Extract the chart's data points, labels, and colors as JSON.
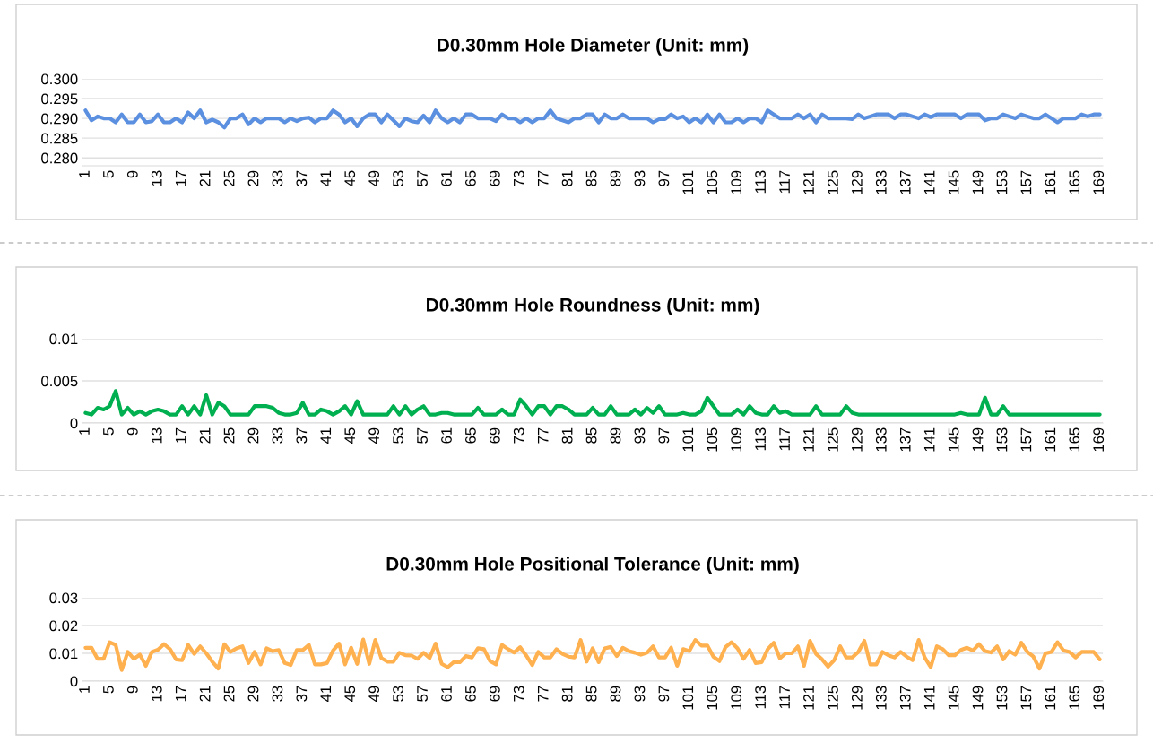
{
  "chart_data": [
    {
      "type": "line",
      "title": "D0.30mm Hole Diameter (Unit: mm)",
      "categories": [
        "1",
        null,
        null,
        null,
        "5",
        null,
        null,
        null,
        "9",
        null,
        null,
        null,
        "13",
        null,
        null,
        null,
        "17",
        null,
        null,
        null,
        "21",
        null,
        null,
        null,
        "25",
        null,
        null,
        null,
        "29",
        null,
        null,
        null,
        "33",
        null,
        null,
        null,
        "37",
        null,
        null,
        null,
        "41",
        null,
        null,
        null,
        "45",
        null,
        null,
        null,
        "49",
        null,
        null,
        null,
        "53",
        null,
        null,
        null,
        "57",
        null,
        null,
        null,
        "61",
        null,
        null,
        null,
        "65",
        null,
        null,
        null,
        "69",
        null,
        null,
        null,
        "73",
        null,
        null,
        null,
        "77",
        null,
        null,
        null,
        "81",
        null,
        null,
        null,
        "85",
        null,
        null,
        null,
        "89",
        null,
        null,
        null,
        "93",
        null,
        null,
        null,
        "97",
        null,
        null,
        null,
        "101",
        null,
        null,
        null,
        "105",
        null,
        null,
        null,
        "109",
        null,
        null,
        null,
        "113",
        null,
        null,
        null,
        "117",
        null,
        null,
        null,
        "121",
        null,
        null,
        null,
        "125",
        null,
        null,
        null,
        "129",
        null,
        null,
        null,
        "133",
        null,
        null,
        null,
        "137",
        null,
        null,
        null,
        "141",
        null,
        null,
        null,
        "145",
        null,
        null,
        null,
        "149",
        null,
        null,
        null,
        "153",
        null,
        null,
        null,
        "157",
        null,
        null,
        null,
        "161",
        null,
        null,
        null,
        "165",
        null,
        null,
        null,
        "169"
      ],
      "series": [
        {
          "color": "#5b8fe0",
          "values": [
            0.292,
            0.2895,
            0.2905,
            0.29,
            0.29,
            0.289,
            0.291,
            0.289,
            0.289,
            0.291,
            0.289,
            0.2893,
            0.291,
            0.289,
            0.289,
            0.29,
            0.289,
            0.2915,
            0.29,
            0.292,
            0.289,
            0.2897,
            0.289,
            0.2877,
            0.29,
            0.29,
            0.291,
            0.2885,
            0.29,
            0.289,
            0.29,
            0.29,
            0.29,
            0.289,
            0.29,
            0.2893,
            0.29,
            0.2902,
            0.289,
            0.29,
            0.29,
            0.292,
            0.291,
            0.289,
            0.29,
            0.288,
            0.29,
            0.291,
            0.291,
            0.289,
            0.291,
            0.2895,
            0.288,
            0.29,
            0.2893,
            0.289,
            0.2907,
            0.289,
            0.292,
            0.29,
            0.289,
            0.29,
            0.289,
            0.291,
            0.291,
            0.29,
            0.29,
            0.29,
            0.2893,
            0.291,
            0.29,
            0.29,
            0.289,
            0.29,
            0.289,
            0.29,
            0.29,
            0.292,
            0.29,
            0.2895,
            0.289,
            0.29,
            0.29,
            0.291,
            0.291,
            0.289,
            0.291,
            0.29,
            0.29,
            0.291,
            0.29,
            0.29,
            0.29,
            0.29,
            0.289,
            0.2898,
            0.2898,
            0.291,
            0.29,
            0.2905,
            0.289,
            0.29,
            0.289,
            0.291,
            0.289,
            0.291,
            0.289,
            0.289,
            0.29,
            0.289,
            0.29,
            0.29,
            0.289,
            0.292,
            0.291,
            0.29,
            0.29,
            0.29,
            0.291,
            0.29,
            0.291,
            0.289,
            0.291,
            0.29,
            0.29,
            0.29,
            0.29,
            0.2898,
            0.291,
            0.29,
            0.2905,
            0.291,
            0.291,
            0.291,
            0.29,
            0.291,
            0.291,
            0.2905,
            0.29,
            0.291,
            0.2903,
            0.291,
            0.291,
            0.291,
            0.291,
            0.29,
            0.291,
            0.291,
            0.291,
            0.2895,
            0.29,
            0.29,
            0.291,
            0.2905,
            0.29,
            0.291,
            0.2905,
            0.29,
            0.29,
            0.291,
            0.29,
            0.289,
            0.29,
            0.29,
            0.29,
            0.291,
            0.2905,
            0.291,
            0.291
          ]
        }
      ],
      "ylim": [
        0.278,
        0.3
      ],
      "yticks": [
        {
          "value": 0.28,
          "label": "0.280"
        },
        {
          "value": 0.285,
          "label": "0.285"
        },
        {
          "value": 0.29,
          "label": "0.290"
        },
        {
          "value": 0.295,
          "label": "0.295"
        },
        {
          "value": 0.3,
          "label": "0.300"
        }
      ],
      "grid": "y",
      "legend": false,
      "marker": "none",
      "line_style": "solid"
    },
    {
      "type": "line",
      "title": "D0.30mm Hole Roundness (Unit: mm)",
      "categories": [
        "1",
        null,
        null,
        null,
        "5",
        null,
        null,
        null,
        "9",
        null,
        null,
        null,
        "13",
        null,
        null,
        null,
        "17",
        null,
        null,
        null,
        "21",
        null,
        null,
        null,
        "25",
        null,
        null,
        null,
        "29",
        null,
        null,
        null,
        "33",
        null,
        null,
        null,
        "37",
        null,
        null,
        null,
        "41",
        null,
        null,
        null,
        "45",
        null,
        null,
        null,
        "49",
        null,
        null,
        null,
        "53",
        null,
        null,
        null,
        "57",
        null,
        null,
        null,
        "61",
        null,
        null,
        null,
        "65",
        null,
        null,
        null,
        "69",
        null,
        null,
        null,
        "73",
        null,
        null,
        null,
        "77",
        null,
        null,
        null,
        "81",
        null,
        null,
        null,
        "85",
        null,
        null,
        null,
        "89",
        null,
        null,
        null,
        "93",
        null,
        null,
        null,
        "97",
        null,
        null,
        null,
        "101",
        null,
        null,
        null,
        "105",
        null,
        null,
        null,
        "109",
        null,
        null,
        null,
        "113",
        null,
        null,
        null,
        "117",
        null,
        null,
        null,
        "121",
        null,
        null,
        null,
        "125",
        null,
        null,
        null,
        "129",
        null,
        null,
        null,
        "133",
        null,
        null,
        null,
        "137",
        null,
        null,
        null,
        "141",
        null,
        null,
        null,
        "145",
        null,
        null,
        null,
        "149",
        null,
        null,
        null,
        "153",
        null,
        null,
        null,
        "157",
        null,
        null,
        null,
        "161",
        null,
        null,
        null,
        "165",
        null,
        null,
        null,
        "169"
      ],
      "series": [
        {
          "color": "#00b050",
          "values": [
            0.0012,
            0.001,
            0.0018,
            0.0016,
            0.002,
            0.0038,
            0.001,
            0.0018,
            0.001,
            0.0014,
            0.001,
            0.0014,
            0.0016,
            0.0014,
            0.001,
            0.001,
            0.002,
            0.001,
            0.002,
            0.001,
            0.0033,
            0.001,
            0.0024,
            0.002,
            0.001,
            0.001,
            0.001,
            0.001,
            0.002,
            0.002,
            0.002,
            0.0018,
            0.0012,
            0.001,
            0.001,
            0.0012,
            0.0024,
            0.001,
            0.001,
            0.0016,
            0.0014,
            0.001,
            0.0014,
            0.002,
            0.001,
            0.0026,
            0.001,
            0.001,
            0.001,
            0.001,
            0.001,
            0.002,
            0.001,
            0.002,
            0.001,
            0.0016,
            0.002,
            0.001,
            0.001,
            0.0012,
            0.0012,
            0.001,
            0.001,
            0.001,
            0.001,
            0.0018,
            0.001,
            0.001,
            0.001,
            0.0016,
            0.001,
            0.001,
            0.0028,
            0.002,
            0.001,
            0.002,
            0.002,
            0.001,
            0.002,
            0.002,
            0.0016,
            0.001,
            0.001,
            0.001,
            0.0018,
            0.001,
            0.001,
            0.002,
            0.001,
            0.001,
            0.001,
            0.0016,
            0.001,
            0.0018,
            0.0012,
            0.002,
            0.001,
            0.001,
            0.001,
            0.0012,
            0.001,
            0.001,
            0.0014,
            0.003,
            0.002,
            0.001,
            0.001,
            0.001,
            0.0016,
            0.001,
            0.002,
            0.0012,
            0.001,
            0.001,
            0.002,
            0.0012,
            0.0014,
            0.001,
            0.001,
            0.001,
            0.001,
            0.002,
            0.001,
            0.001,
            0.001,
            0.001,
            0.002,
            0.0012,
            0.001,
            0.001,
            0.001,
            0.001,
            0.001,
            0.001,
            0.001,
            0.001,
            0.001,
            0.001,
            0.001,
            0.001,
            0.001,
            0.001,
            0.001,
            0.001,
            0.001,
            0.0012,
            0.001,
            0.001,
            0.001,
            0.003,
            0.001,
            0.001,
            0.002,
            0.001,
            0.001,
            0.001,
            0.001,
            0.001,
            0.001,
            0.001,
            0.001,
            0.001,
            0.001,
            0.001,
            0.001,
            0.001,
            0.001,
            0.001,
            0.001
          ]
        }
      ],
      "ylim": [
        0,
        0.01
      ],
      "yticks": [
        0,
        0.005,
        0.01
      ],
      "grid": "y",
      "legend": false,
      "marker": "none",
      "line_style": "solid"
    },
    {
      "type": "line",
      "title": "D0.30mm Hole Positional Tolerance (Unit: mm)",
      "categories": [
        "1",
        null,
        null,
        null,
        "5",
        null,
        null,
        null,
        "9",
        null,
        null,
        null,
        "13",
        null,
        null,
        null,
        "17",
        null,
        null,
        null,
        "21",
        null,
        null,
        null,
        "25",
        null,
        null,
        null,
        "29",
        null,
        null,
        null,
        "33",
        null,
        null,
        null,
        "37",
        null,
        null,
        null,
        "41",
        null,
        null,
        null,
        "45",
        null,
        null,
        null,
        "49",
        null,
        null,
        null,
        "53",
        null,
        null,
        null,
        "57",
        null,
        null,
        null,
        "61",
        null,
        null,
        null,
        "65",
        null,
        null,
        null,
        "69",
        null,
        null,
        null,
        "73",
        null,
        null,
        null,
        "77",
        null,
        null,
        null,
        "81",
        null,
        null,
        null,
        "85",
        null,
        null,
        null,
        "89",
        null,
        null,
        null,
        "93",
        null,
        null,
        null,
        "97",
        null,
        null,
        null,
        "101",
        null,
        null,
        null,
        "105",
        null,
        null,
        null,
        "109",
        null,
        null,
        null,
        "113",
        null,
        null,
        null,
        "117",
        null,
        null,
        null,
        "121",
        null,
        null,
        null,
        "125",
        null,
        null,
        null,
        "129",
        null,
        null,
        null,
        "133",
        null,
        null,
        null,
        "137",
        null,
        null,
        null,
        "141",
        null,
        null,
        null,
        "145",
        null,
        null,
        null,
        "149",
        null,
        null,
        null,
        "153",
        null,
        null,
        null,
        "157",
        null,
        null,
        null,
        "161",
        null,
        null,
        null,
        "165",
        null,
        null,
        null,
        "169"
      ],
      "series": [
        {
          "color": "#ffb04f",
          "values": [
            0.012,
            0.012,
            0.008,
            0.008,
            0.014,
            0.013,
            0.004,
            0.0105,
            0.008,
            0.0095,
            0.0055,
            0.0105,
            0.0113,
            0.0133,
            0.0115,
            0.0078,
            0.0075,
            0.013,
            0.0098,
            0.0125,
            0.01,
            0.007,
            0.0045,
            0.0133,
            0.0105,
            0.0118,
            0.0125,
            0.0065,
            0.0105,
            0.006,
            0.0118,
            0.0108,
            0.0112,
            0.0065,
            0.0058,
            0.0112,
            0.0112,
            0.013,
            0.006,
            0.006,
            0.0065,
            0.011,
            0.0135,
            0.006,
            0.012,
            0.0062,
            0.015,
            0.0062,
            0.0148,
            0.0083,
            0.007,
            0.007,
            0.0102,
            0.0093,
            0.0092,
            0.008,
            0.0102,
            0.0083,
            0.0135,
            0.0062,
            0.005,
            0.0068,
            0.0068,
            0.009,
            0.0085,
            0.0118,
            0.0115,
            0.0072,
            0.006,
            0.013,
            0.0115,
            0.0103,
            0.0122,
            0.0092,
            0.0058,
            0.0105,
            0.0085,
            0.0085,
            0.0115,
            0.0098,
            0.0088,
            0.0085,
            0.0148,
            0.007,
            0.0118,
            0.0068,
            0.0118,
            0.0123,
            0.009,
            0.012,
            0.0108,
            0.0102,
            0.0095,
            0.0102,
            0.0125,
            0.0085,
            0.0085,
            0.012,
            0.0055,
            0.0115,
            0.0108,
            0.0148,
            0.0128,
            0.0128,
            0.0088,
            0.0072,
            0.0122,
            0.014,
            0.0118,
            0.008,
            0.0112,
            0.0065,
            0.0068,
            0.0115,
            0.0138,
            0.0082,
            0.01,
            0.01,
            0.0125,
            0.0055,
            0.0145,
            0.0098,
            0.0078,
            0.0052,
            0.0075,
            0.0125,
            0.0085,
            0.0085,
            0.0105,
            0.0145,
            0.006,
            0.006,
            0.0105,
            0.0093,
            0.0085,
            0.0105,
            0.0088,
            0.0075,
            0.0148,
            0.0085,
            0.005,
            0.0125,
            0.0115,
            0.0093,
            0.0093,
            0.0112,
            0.012,
            0.011,
            0.0133,
            0.0108,
            0.0103,
            0.0125,
            0.0078,
            0.0108,
            0.0095,
            0.0138,
            0.0105,
            0.0088,
            0.0045,
            0.01,
            0.0105,
            0.014,
            0.011,
            0.0105,
            0.0085,
            0.0105,
            0.0105,
            0.0105,
            0.0078
          ]
        }
      ],
      "ylim": [
        0,
        0.03
      ],
      "yticks": [
        0,
        0.01,
        0.02,
        0.03
      ],
      "grid": "y",
      "legend": false,
      "marker": "none",
      "line_style": "solid"
    }
  ]
}
